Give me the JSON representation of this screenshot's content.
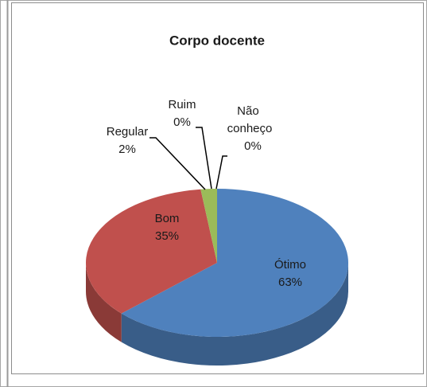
{
  "chart_data": {
    "type": "pie3d",
    "title": "Corpo docente",
    "categories": [
      "Ótimo",
      "Bom",
      "Regular",
      "Ruim",
      "Não conheço"
    ],
    "values": [
      63,
      35,
      2,
      0,
      0
    ],
    "value_labels": [
      "63%",
      "35%",
      "2%",
      "0%",
      "0%"
    ],
    "colors": [
      "#4f81bd",
      "#c0504d",
      "#9bbb59",
      "#8064a2",
      "#4bacc6"
    ]
  }
}
